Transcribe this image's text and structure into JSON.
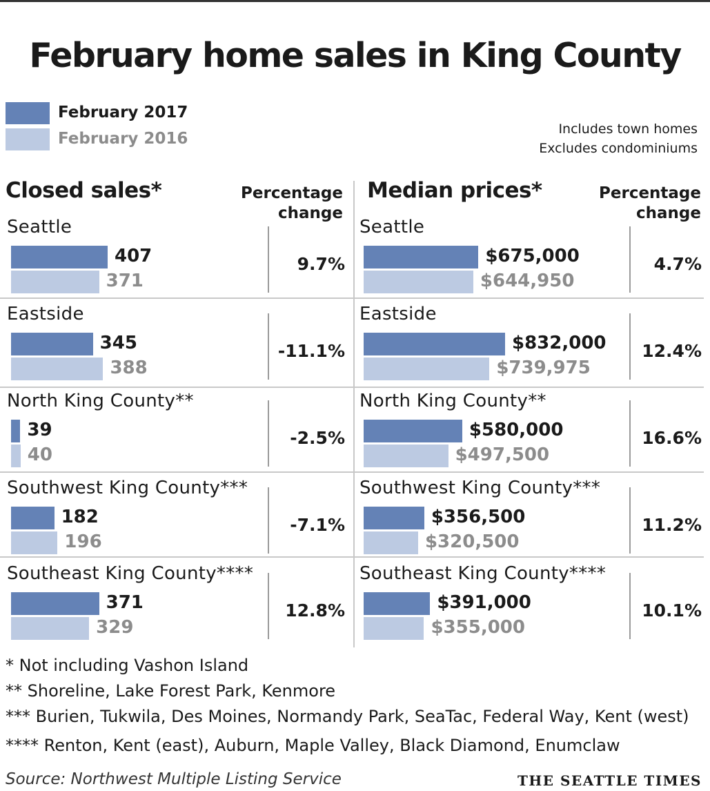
{
  "title": "February home sales in King County",
  "legend": [
    {
      "label": "February 2017",
      "color": "#6482b6"
    },
    {
      "label": "February 2016",
      "color": "#bccae2"
    }
  ],
  "notes": [
    "Includes town homes",
    "Excludes condominiums"
  ],
  "pct_header": [
    "Percentage",
    "change"
  ],
  "chart_data": [
    {
      "type": "bar",
      "title": "Closed sales*",
      "categories": [
        "Seattle",
        "Eastside",
        "North King County**",
        "Southwest King County***",
        "Southeast King County****"
      ],
      "series": [
        {
          "name": "February 2017",
          "values": [
            407,
            345,
            39,
            182,
            371
          ]
        },
        {
          "name": "February 2016",
          "values": [
            371,
            388,
            40,
            196,
            329
          ]
        }
      ],
      "value_labels_2017": [
        "407",
        "345",
        "39",
        "182",
        "371"
      ],
      "value_labels_2016": [
        "371",
        "388",
        "40",
        "196",
        "329"
      ],
      "percentage_change": [
        "9.7%",
        "-11.1%",
        "-2.5%",
        "-7.1%",
        "12.8%"
      ]
    },
    {
      "type": "bar",
      "title": "Median prices*",
      "categories": [
        "Seattle",
        "Eastside",
        "North King County**",
        "Southwest King County***",
        "Southeast King County****"
      ],
      "series": [
        {
          "name": "February 2017",
          "values": [
            675000,
            832000,
            580000,
            356500,
            391000
          ]
        },
        {
          "name": "February 2016",
          "values": [
            644950,
            739975,
            497500,
            320500,
            355000
          ]
        }
      ],
      "value_labels_2017": [
        "$675,000",
        "$832,000",
        "$580,000",
        "$356,500",
        "$391,000"
      ],
      "value_labels_2016": [
        "$644,950",
        "$739,975",
        "$497,500",
        "$320,500",
        "$355,000"
      ],
      "percentage_change": [
        "4.7%",
        "12.4%",
        "16.6%",
        "11.2%",
        "10.1%"
      ]
    }
  ],
  "footnotes": [
    "* Not including Vashon Island",
    "**  Shoreline, Lake Forest Park, Kenmore",
    "*** Burien, Tukwila, Des Moines, Normandy Park, SeaTac, Federal Way, Kent (west)",
    "**** Renton, Kent (east), Auburn, Maple Valley, Black Diamond, Enumclaw"
  ],
  "source": "Source: Northwest Multiple Listing Service",
  "brand": "THE SEATTLE TIMES"
}
